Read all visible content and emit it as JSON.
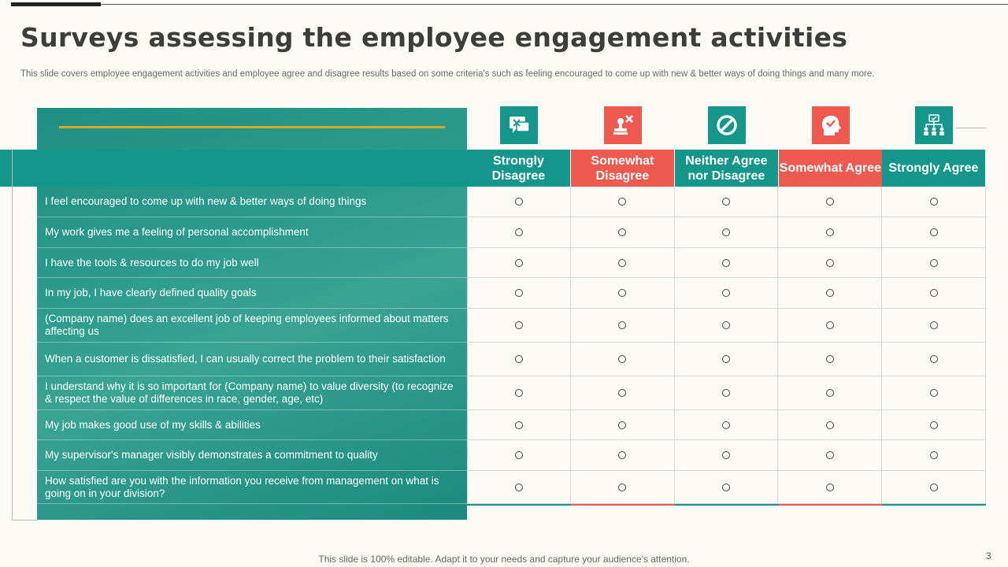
{
  "title": "Surveys assessing the employee engagement activities",
  "subtitle": "This slide covers employee engagement activities and employee agree and disagree results based on some criteria's such as feeling encouraged to come up with new & better ways of doing things and many more.",
  "colors": {
    "teal": "#15968a",
    "red": "#ee5a4f",
    "accent_line": "#d8a824"
  },
  "columns": [
    {
      "label": "Strongly Disagree",
      "icon": "chat-x-icon",
      "color": "#15968a"
    },
    {
      "label": "Somewhat Disagree",
      "icon": "stamp-x-icon",
      "color": "#ee5a4f"
    },
    {
      "label": "Neither Agree nor Disagree",
      "icon": "prohibited-icon",
      "color": "#15968a"
    },
    {
      "label": "Somewhat Agree",
      "icon": "head-check-icon",
      "color": "#ee5a4f"
    },
    {
      "label": "Strongly Agree",
      "icon": "team-network-icon",
      "color": "#15968a"
    }
  ],
  "rows": [
    "I feel encouraged to come up with new & better ways of doing things",
    "My work gives me a feeling of personal accomplishment",
    "I have the tools & resources to do my job well",
    "In my job, I have clearly defined quality goals",
    "(Company name) does an excellent job of keeping employees informed about matters affecting us",
    "When a customer is dissatisfied, I can usually correct the problem to their satisfaction",
    "I understand why it is so important for (Company name) to value diversity (to recognize & respect the value of differences in race, gender, age, etc)",
    "My job makes good use of my skills & abilities",
    "My supervisor's manager visibly demonstrates a commitment to quality",
    "How satisfied are you with the information you receive from management on what is going on in your division?"
  ],
  "footer": "This slide is 100% editable. Adapt it to your needs and capture your audience's attention.",
  "page_number": "3"
}
